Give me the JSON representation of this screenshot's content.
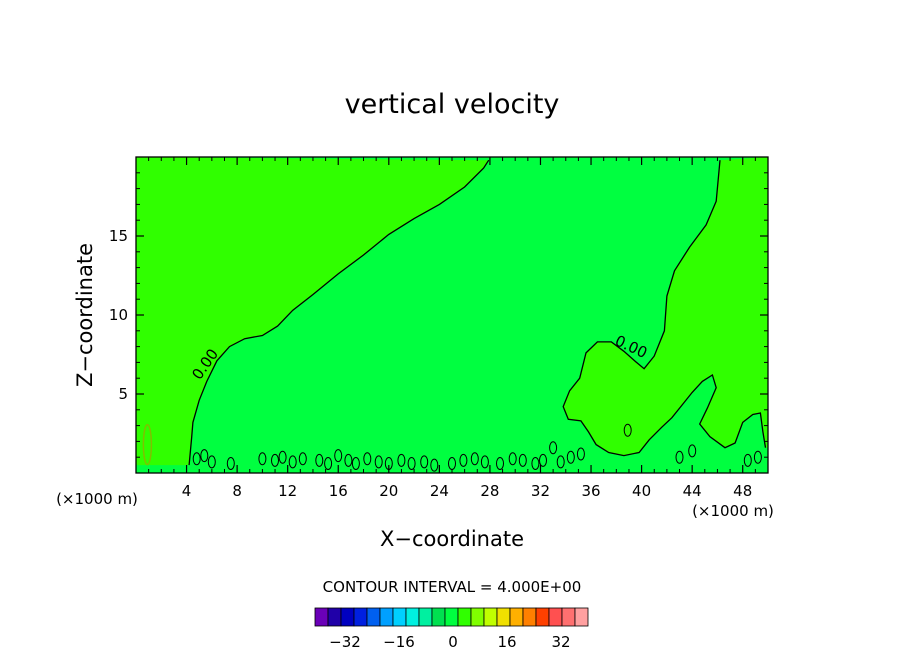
{
  "chart_data": {
    "type": "contour",
    "title": "vertical velocity",
    "xlabel": "X−coordinate",
    "ylabel": "Z−coordinate",
    "x_unit": "(×1000 m)",
    "y_unit": "(×1000 m)",
    "xlim": [
      0,
      50
    ],
    "ylim": [
      0,
      20
    ],
    "x_ticks": [
      4,
      8,
      12,
      16,
      20,
      24,
      28,
      32,
      36,
      40,
      44,
      48
    ],
    "y_ticks": [
      5,
      10,
      15
    ],
    "contour_labels": [
      {
        "text": "0.00",
        "x": 5.8,
        "z": 6.7
      },
      {
        "text": "0.00",
        "x": 39.0,
        "z": 7.7
      }
    ],
    "zero_contour_main": [
      [
        4.2,
        0.5
      ],
      [
        4.4,
        2.2
      ],
      [
        4.5,
        3.2
      ],
      [
        5.0,
        4.6
      ],
      [
        5.6,
        5.8
      ],
      [
        6.4,
        7.1
      ],
      [
        7.4,
        8.0
      ],
      [
        8.6,
        8.5
      ],
      [
        10.0,
        8.7
      ],
      [
        11.2,
        9.3
      ],
      [
        12.4,
        10.3
      ],
      [
        14.0,
        11.3
      ],
      [
        16.0,
        12.6
      ],
      [
        18.0,
        13.8
      ],
      [
        20.0,
        15.1
      ],
      [
        22.0,
        16.1
      ],
      [
        24.0,
        17.0
      ],
      [
        26.0,
        18.1
      ],
      [
        27.5,
        19.3
      ],
      [
        27.9,
        19.8
      ]
    ],
    "zero_contour_right": [
      [
        46.2,
        19.8
      ],
      [
        45.9,
        17.2
      ],
      [
        45.1,
        15.7
      ],
      [
        43.8,
        14.3
      ],
      [
        42.6,
        12.8
      ],
      [
        42.0,
        11.2
      ],
      [
        41.8,
        9.0
      ],
      [
        41.0,
        7.4
      ],
      [
        40.2,
        6.6
      ],
      [
        39.6,
        7.0
      ],
      [
        38.6,
        7.7
      ],
      [
        37.6,
        8.3
      ],
      [
        36.5,
        8.3
      ],
      [
        35.6,
        7.6
      ],
      [
        35.1,
        6.0
      ],
      [
        34.3,
        5.2
      ],
      [
        33.8,
        4.2
      ],
      [
        34.2,
        3.4
      ],
      [
        35.2,
        3.3
      ],
      [
        35.8,
        2.6
      ],
      [
        36.4,
        1.8
      ],
      [
        37.4,
        1.3
      ],
      [
        38.6,
        1.1
      ],
      [
        39.8,
        1.3
      ],
      [
        40.6,
        2.1
      ],
      [
        41.6,
        2.9
      ],
      [
        42.4,
        3.5
      ],
      [
        43.2,
        4.3
      ],
      [
        44.0,
        5.1
      ],
      [
        44.8,
        5.8
      ],
      [
        45.6,
        6.2
      ],
      [
        45.9,
        5.4
      ],
      [
        45.2,
        4.1
      ],
      [
        44.6,
        3.1
      ],
      [
        45.4,
        2.3
      ],
      [
        46.6,
        1.6
      ],
      [
        47.4,
        1.9
      ],
      [
        48.0,
        3.2
      ],
      [
        48.8,
        3.7
      ],
      [
        49.4,
        3.8
      ],
      [
        49.6,
        2.6
      ],
      [
        49.8,
        1.6
      ]
    ],
    "colorbar": {
      "title": "CONTOUR INTERVAL = 4.000E+00",
      "interval": 4.0,
      "ticks": [
        "−32",
        "−16",
        "0",
        "16",
        "32"
      ],
      "colors": [
        "#6a00b8",
        "#2000a8",
        "#0000c0",
        "#0020e0",
        "#0060f0",
        "#00a0ff",
        "#00d0ff",
        "#00f0e0",
        "#00f0a0",
        "#00e050",
        "#00ff40",
        "#30ff00",
        "#80ff00",
        "#c0ff00",
        "#f0e000",
        "#ffb000",
        "#ff8000",
        "#ff4000",
        "#ff5050",
        "#ff7070",
        "#ffa0a0"
      ]
    },
    "colors": {
      "field_main": "#00ff40",
      "field_positive": "#30ff00",
      "contour": "#000000"
    }
  }
}
